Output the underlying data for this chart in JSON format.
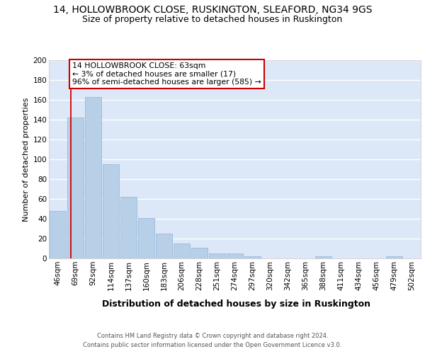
{
  "title": "14, HOLLOWBROOK CLOSE, RUSKINGTON, SLEAFORD, NG34 9GS",
  "subtitle": "Size of property relative to detached houses in Ruskington",
  "xlabel": "Distribution of detached houses by size in Ruskington",
  "ylabel": "Number of detached properties",
  "bar_labels": [
    "46sqm",
    "69sqm",
    "92sqm",
    "114sqm",
    "137sqm",
    "160sqm",
    "183sqm",
    "206sqm",
    "228sqm",
    "251sqm",
    "274sqm",
    "297sqm",
    "320sqm",
    "342sqm",
    "365sqm",
    "388sqm",
    "411sqm",
    "434sqm",
    "456sqm",
    "479sqm",
    "502sqm"
  ],
  "bar_values": [
    48,
    142,
    163,
    95,
    62,
    41,
    25,
    15,
    11,
    5,
    5,
    2,
    0,
    0,
    0,
    2,
    0,
    0,
    0,
    2,
    0
  ],
  "bar_color": "#b8cfe8",
  "bar_edgecolor": "#8fb3d9",
  "bg_color": "#dce8f8",
  "grid_color": "#ffffff",
  "annotation_text": "14 HOLLOWBROOK CLOSE: 63sqm\n← 3% of detached houses are smaller (17)\n96% of semi-detached houses are larger (585) →",
  "annotation_box_edgecolor": "#cc0000",
  "footnote": "Contains HM Land Registry data © Crown copyright and database right 2024.\nContains public sector information licensed under the Open Government Licence v3.0.",
  "ylim": [
    0,
    200
  ],
  "title_fontsize": 10,
  "subtitle_fontsize": 9,
  "ylabel_fontsize": 8,
  "xlabel_fontsize": 9,
  "tick_fontsize": 7.5,
  "footnote_fontsize": 6
}
